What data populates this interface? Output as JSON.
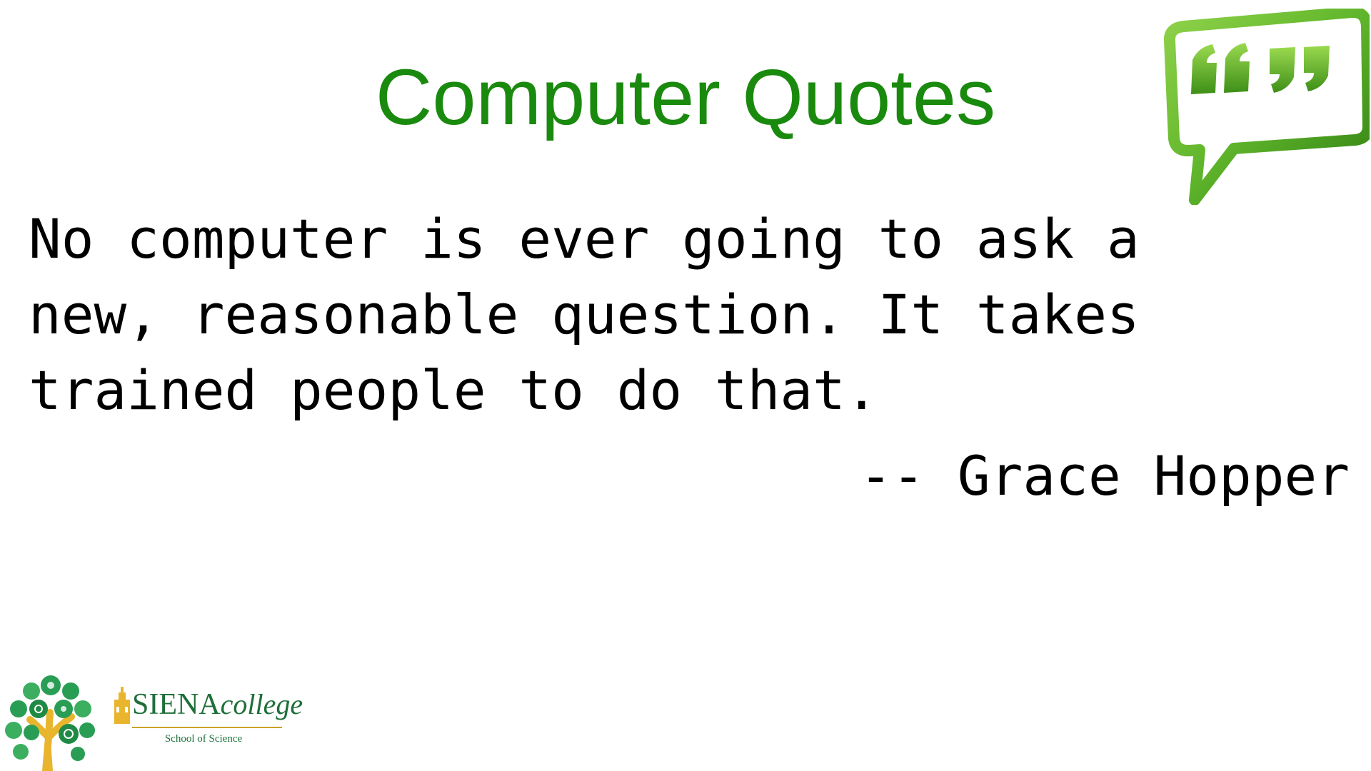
{
  "slide": {
    "title": "Computer Quotes",
    "quote_lines": [
      "No computer is ever going to ask a",
      "new, reasonable question. It takes",
      "trained people to do that."
    ],
    "attribution": "-- Grace Hopper"
  },
  "branding": {
    "wordmark_main": "SIENA",
    "wordmark_college": "college",
    "subtitle": "School of Science"
  },
  "colors": {
    "title": "#1a8a0e",
    "quote_icon": "#5fb52a",
    "siena_green": "#1f6f3a",
    "siena_gold": "#c9a227"
  },
  "icons": {
    "quote_icon": "speech-bubble-quote-icon",
    "tree_logo": "science-tree-logo",
    "building_icon": "siena-building-icon"
  }
}
